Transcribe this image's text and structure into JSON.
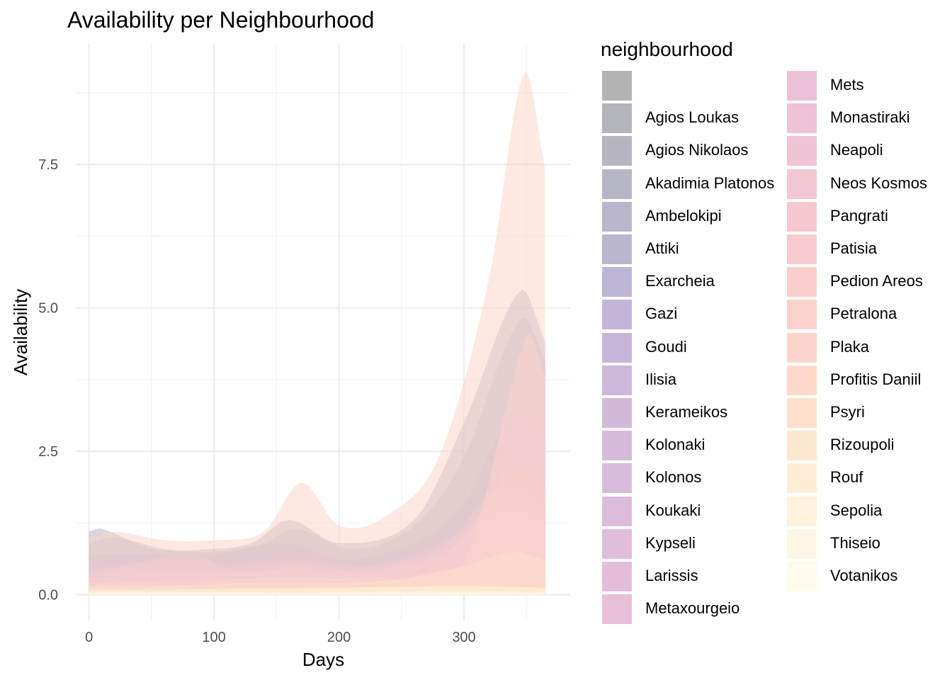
{
  "chart_data": {
    "type": "area",
    "title": "Availability per Neighbourhood",
    "xlabel": "Days",
    "ylabel": "Availability",
    "xlim": [
      -10,
      385
    ],
    "ylim": [
      -0.45,
      9.6
    ],
    "x_ticks": [
      0,
      100,
      200,
      300
    ],
    "y_ticks": [
      0.0,
      2.5,
      5.0,
      7.5
    ],
    "y_tick_labels": [
      "0.0",
      "2.5",
      "5.0",
      "7.5"
    ],
    "grid": true,
    "legend_title": "neighbourhood",
    "legend_position": "right",
    "series": [
      {
        "name": "",
        "color": "#b3b3b3",
        "x": [
          0,
          100,
          200,
          300,
          365
        ],
        "values": [
          0.05,
          0.05,
          0.05,
          0.05,
          0.05
        ]
      },
      {
        "name": "Agios Loukas",
        "color": "#b4b4bb",
        "x": [
          0,
          100,
          200,
          300,
          365
        ],
        "values": [
          0.06,
          0.06,
          0.06,
          0.07,
          0.06
        ]
      },
      {
        "name": "Agios Nikolaos",
        "color": "#b6b5c1",
        "x": [
          0,
          10,
          50,
          100,
          130,
          160,
          200,
          260,
          300,
          345,
          365
        ],
        "values": [
          1.1,
          1.15,
          0.8,
          0.8,
          0.9,
          1.3,
          0.9,
          1.3,
          3.0,
          5.3,
          4.4
        ]
      },
      {
        "name": "Akadimia Platonos",
        "color": "#b7b6c6",
        "x": [
          0,
          100,
          200,
          300,
          365
        ],
        "values": [
          0.1,
          0.1,
          0.1,
          0.12,
          0.1
        ]
      },
      {
        "name": "Ambelokipi",
        "color": "#b9b6cb",
        "x": [
          0,
          20,
          60,
          100,
          140,
          165,
          210,
          260,
          300,
          345,
          365
        ],
        "values": [
          0.9,
          1.0,
          0.8,
          0.75,
          0.9,
          1.15,
          0.8,
          1.2,
          2.4,
          4.8,
          4.1
        ]
      },
      {
        "name": "Attiki",
        "color": "#bab5d0",
        "x": [
          0,
          100,
          200,
          300,
          365
        ],
        "values": [
          0.08,
          0.08,
          0.08,
          0.1,
          0.08
        ]
      },
      {
        "name": "Exarcheia",
        "color": "#bdb5d4",
        "x": [
          0,
          40,
          100,
          160,
          200,
          260,
          300,
          340,
          365
        ],
        "values": [
          0.7,
          0.7,
          0.7,
          0.9,
          0.6,
          0.9,
          1.6,
          3.2,
          2.9
        ]
      },
      {
        "name": "Gazi",
        "color": "#c2b5d8",
        "x": [
          0,
          100,
          200,
          300,
          365
        ],
        "values": [
          0.12,
          0.12,
          0.12,
          0.14,
          0.12
        ]
      },
      {
        "name": "Goudi",
        "color": "#c7b6da",
        "x": [
          0,
          100,
          200,
          300,
          365
        ],
        "values": [
          0.15,
          0.15,
          0.15,
          0.18,
          0.15
        ]
      },
      {
        "name": "Ilisia",
        "color": "#ccb8da",
        "x": [
          0,
          30,
          80,
          130,
          170,
          210,
          270,
          310,
          345,
          365
        ],
        "values": [
          0.6,
          0.7,
          0.6,
          0.65,
          0.85,
          0.55,
          0.8,
          1.3,
          2.9,
          2.6
        ]
      },
      {
        "name": "Kerameikos",
        "color": "#d1b9da",
        "x": [
          0,
          100,
          200,
          300,
          365
        ],
        "values": [
          0.2,
          0.2,
          0.2,
          0.25,
          0.2
        ]
      },
      {
        "name": "Kolonaki",
        "color": "#d5bada",
        "x": [
          0,
          60,
          120,
          170,
          220,
          280,
          320,
          350,
          365
        ],
        "values": [
          0.5,
          0.55,
          0.55,
          0.7,
          0.5,
          0.7,
          1.3,
          2.7,
          2.3
        ]
      },
      {
        "name": "Kolonos",
        "color": "#d8bbda",
        "x": [
          0,
          100,
          200,
          300,
          365
        ],
        "values": [
          0.1,
          0.1,
          0.1,
          0.12,
          0.1
        ]
      },
      {
        "name": "Koukaki",
        "color": "#dcbcda",
        "x": [
          0,
          40,
          100,
          160,
          220,
          280,
          320,
          345,
          365
        ],
        "values": [
          0.45,
          0.5,
          0.45,
          0.6,
          0.5,
          0.9,
          1.6,
          3.2,
          2.8
        ]
      },
      {
        "name": "Kypseli",
        "color": "#e0bdda",
        "x": [
          0,
          50,
          100,
          160,
          210,
          270,
          330,
          365
        ],
        "values": [
          0.4,
          0.45,
          0.45,
          0.55,
          0.45,
          0.7,
          1.4,
          1.2
        ]
      },
      {
        "name": "Larissis",
        "color": "#e3bed9",
        "x": [
          0,
          100,
          200,
          300,
          365
        ],
        "values": [
          0.1,
          0.1,
          0.1,
          0.12,
          0.1
        ]
      },
      {
        "name": "Metaxourgeio",
        "color": "#e7bfd9",
        "x": [
          0,
          80,
          120,
          170,
          220,
          280,
          330,
          365
        ],
        "values": [
          0.35,
          0.7,
          0.4,
          0.5,
          0.45,
          0.8,
          1.9,
          1.6
        ]
      },
      {
        "name": "Mets",
        "color": "#ebc1d8",
        "x": [
          0,
          100,
          200,
          300,
          365
        ],
        "values": [
          0.12,
          0.12,
          0.12,
          0.14,
          0.12
        ]
      },
      {
        "name": "Monastiraki",
        "color": "#eec2d7",
        "x": [
          0,
          60,
          120,
          170,
          230,
          290,
          335,
          365
        ],
        "values": [
          0.3,
          0.35,
          0.35,
          0.45,
          0.4,
          0.65,
          1.5,
          1.3
        ]
      },
      {
        "name": "Neapoli",
        "color": "#f1c4d5",
        "x": [
          0,
          100,
          200,
          300,
          365
        ],
        "values": [
          0.1,
          0.1,
          0.1,
          0.12,
          0.1
        ]
      },
      {
        "name": "Neos Kosmos",
        "color": "#f3c6d3",
        "x": [
          0,
          50,
          100,
          165,
          220,
          290,
          340,
          365
        ],
        "values": [
          0.3,
          0.35,
          0.35,
          0.45,
          0.4,
          0.8,
          2.2,
          1.9
        ]
      },
      {
        "name": "Pangrati",
        "color": "#f5c8d1",
        "x": [
          0,
          100,
          200,
          300,
          365
        ],
        "values": [
          0.14,
          0.14,
          0.14,
          0.17,
          0.14
        ]
      },
      {
        "name": "Patisia",
        "color": "#f7cbcf",
        "x": [
          0,
          100,
          200,
          300,
          365
        ],
        "values": [
          0.08,
          0.08,
          0.08,
          0.1,
          0.08
        ]
      },
      {
        "name": "Pedion Areos",
        "color": "#f9cecd",
        "x": [
          0,
          80,
          160,
          230,
          300,
          350,
          365
        ],
        "values": [
          0.2,
          0.25,
          0.3,
          0.3,
          0.6,
          4.5,
          3.8
        ]
      },
      {
        "name": "Petralona",
        "color": "#fad1cc",
        "x": [
          0,
          100,
          200,
          300,
          365
        ],
        "values": [
          0.12,
          0.12,
          0.12,
          0.15,
          0.12
        ]
      },
      {
        "name": "Plaka",
        "color": "#fbd5cb",
        "x": [
          0,
          20,
          60,
          100,
          140,
          170,
          200,
          240,
          280,
          320,
          348,
          365
        ],
        "values": [
          1.0,
          1.1,
          0.95,
          0.95,
          1.1,
          1.95,
          1.2,
          1.4,
          2.4,
          5.5,
          9.1,
          7.4
        ]
      },
      {
        "name": "Profitis Daniil",
        "color": "#fcd9cb",
        "x": [
          0,
          100,
          200,
          300,
          365
        ],
        "values": [
          0.1,
          0.1,
          0.1,
          0.12,
          0.1
        ]
      },
      {
        "name": "Psyri",
        "color": "#fde1cc",
        "x": [
          0,
          60,
          120,
          180,
          240,
          300,
          340,
          365
        ],
        "values": [
          0.15,
          0.15,
          0.2,
          0.2,
          0.25,
          0.5,
          0.75,
          0.6
        ]
      },
      {
        "name": "Rizoupoli",
        "color": "#fde7d0",
        "x": [
          0,
          100,
          200,
          300,
          365
        ],
        "values": [
          0.06,
          0.06,
          0.06,
          0.08,
          0.06
        ]
      },
      {
        "name": "Rouf",
        "color": "#feedd6",
        "x": [
          0,
          100,
          200,
          300,
          365
        ],
        "values": [
          0.05,
          0.05,
          0.05,
          0.06,
          0.05
        ]
      },
      {
        "name": "Sepolia",
        "color": "#fef2dc",
        "x": [
          0,
          100,
          200,
          300,
          365
        ],
        "values": [
          0.08,
          0.1,
          0.12,
          0.15,
          0.12
        ]
      },
      {
        "name": "Thiseio",
        "color": "#fef6e4",
        "x": [
          0,
          100,
          200,
          300,
          365
        ],
        "values": [
          0.04,
          0.04,
          0.04,
          0.05,
          0.04
        ]
      },
      {
        "name": "Votanikos",
        "color": "#fefbec",
        "x": [
          0,
          100,
          200,
          300,
          365
        ],
        "values": [
          0.03,
          0.03,
          0.03,
          0.04,
          0.03
        ]
      }
    ]
  }
}
